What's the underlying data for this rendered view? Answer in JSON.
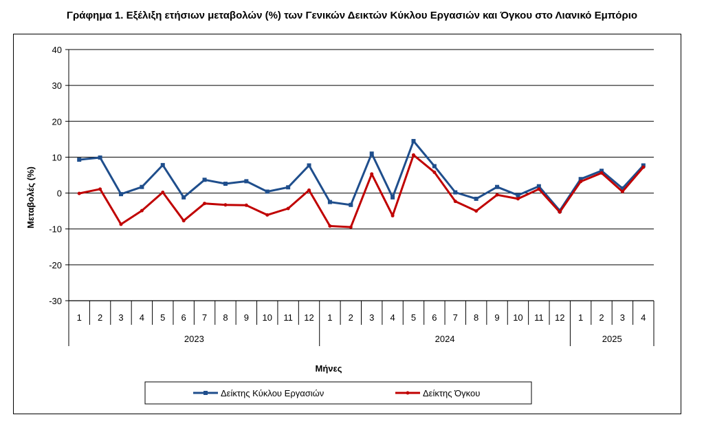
{
  "chart_data": {
    "type": "line",
    "title": "Γράφημα 1. Εξέλιξη ετήσιων μεταβολών (%) των Γενικών Δεικτών Κύκλου Εργασιών και Όγκου στο Λιανικό Εμπόριο",
    "xlabel": "Μήνες",
    "ylabel": "Μεταβολές (%)",
    "ylim": [
      -30,
      40
    ],
    "yticks": [
      "-30",
      "-20",
      "-10",
      "0",
      "10",
      "20",
      "30",
      "40"
    ],
    "months": [
      "1",
      "2",
      "3",
      "4",
      "5",
      "6",
      "7",
      "8",
      "9",
      "10",
      "11",
      "12",
      "1",
      "2",
      "3",
      "4",
      "5",
      "6",
      "7",
      "8",
      "9",
      "10",
      "11",
      "12",
      "1",
      "2",
      "3",
      "4"
    ],
    "years": [
      {
        "label": "2023",
        "months": 12
      },
      {
        "label": "2024",
        "months": 12
      },
      {
        "label": "2025",
        "months": 4
      }
    ],
    "grid": true,
    "legend_position": "bottom",
    "series": [
      {
        "name": "Δείκτης Κύκλου Εργασιών",
        "color": "#1f4e8c",
        "marker": "square",
        "values": [
          9.3,
          9.9,
          -0.3,
          1.7,
          7.8,
          -1.2,
          3.7,
          2.6,
          3.3,
          0.4,
          1.6,
          7.7,
          -2.5,
          -3.3,
          11.0,
          -1.2,
          14.5,
          7.5,
          0.2,
          -1.6,
          1.7,
          -0.6,
          1.9,
          -4.9,
          3.9,
          6.2,
          1.3,
          7.7
        ]
      },
      {
        "name": "Δείκτης Όγκου",
        "color": "#c00000",
        "marker": "circle",
        "values": [
          -0.1,
          1.1,
          -8.7,
          -4.9,
          0.2,
          -7.7,
          -2.9,
          -3.3,
          -3.4,
          -6.1,
          -4.3,
          0.8,
          -9.2,
          -9.5,
          5.3,
          -6.3,
          10.6,
          5.8,
          -2.3,
          -5.0,
          -0.5,
          -1.6,
          1.1,
          -5.3,
          3.2,
          5.6,
          0.4,
          7.2
        ]
      }
    ]
  }
}
